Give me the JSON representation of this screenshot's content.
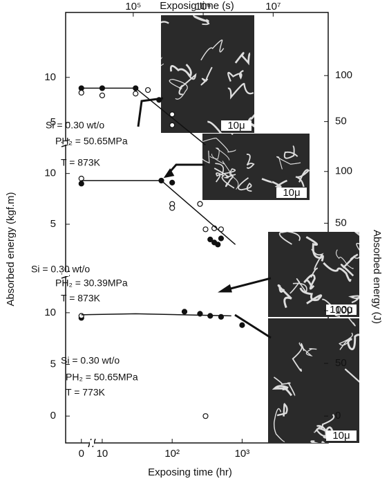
{
  "chart_data": {
    "type": "scatter",
    "xlabel": "Exposing time (hr)",
    "x2label": "Exposig time (s)",
    "ylabel": "Absorbed energy (kgf.m)",
    "y2label": "Absorbed energy (J)",
    "xscale": "log",
    "xlim": [
      3,
      17000
    ],
    "xticks": [
      0,
      10,
      {
        "value": 100,
        "label": "10²"
      },
      {
        "value": 1000,
        "label": "10³"
      }
    ],
    "x2lim": [
      10800,
      61200000
    ],
    "x2ticks": [
      {
        "value": 100000,
        "label": "10⁵"
      },
      {
        "value": 1000000,
        "label": "10⁶"
      },
      {
        "value": 10000000,
        "label": "10⁷"
      }
    ],
    "panels": [
      {
        "ylim": [
          3,
          17.2
        ],
        "yticks": [
          5,
          10
        ],
        "y2lim": [
          29.42,
          168.67
        ],
        "y2ticks": [
          50,
          100
        ],
        "annotations": [
          "Si = 0.30 wt/o",
          "PH₂ = 50.65MPa",
          "T = 873K"
        ],
        "series": [
          {
            "marker": "filled",
            "color": "#111111",
            "x": [
              0,
              10,
              30,
              65
            ],
            "values": [
              8.8,
              8.8,
              8.8,
              7.5
            ]
          },
          {
            "marker": "open",
            "color": "#111111",
            "x": [
              0,
              10,
              30,
              45,
              100,
              100
            ],
            "values": [
              8.3,
              8.0,
              8.2,
              8.6,
              5.9,
              4.7
            ]
          },
          {
            "marker": "line",
            "color": "#111111",
            "x": [
              0,
              30,
              300
            ],
            "values": [
              8.8,
              8.8,
              2.5
            ]
          }
        ]
      },
      {
        "ylim": [
          2,
          11
        ],
        "yticks": [
          5,
          10
        ],
        "y2lim": [
          19.61,
          107.87
        ],
        "y2ticks": [
          50,
          100
        ],
        "annotations": [
          "Si = 0.30 wt/o",
          "PH₂ = 30.39MPa",
          "T = 873K"
        ],
        "series": [
          {
            "marker": "filled",
            "color": "#111111",
            "x": [
              0,
              70,
              100,
              250,
              350,
              400,
              450,
              500
            ],
            "values": [
              9.0,
              9.3,
              9.1,
              7.0,
              3.5,
              3.2,
              3.0,
              3.6
            ]
          },
          {
            "marker": "open",
            "color": "#111111",
            "x": [
              0,
              100,
              100,
              250,
              300,
              400,
              500
            ],
            "values": [
              9.5,
              7.0,
              6.6,
              7.0,
              4.5,
              4.6,
              4.5
            ]
          },
          {
            "marker": "line",
            "color": "#111111",
            "x": [
              0,
              70,
              800
            ],
            "values": [
              9.3,
              9.3,
              3.0
            ]
          }
        ]
      },
      {
        "ylim": [
          -2.6,
          12
        ],
        "yticks": [
          0,
          5,
          10
        ],
        "y2lim": [
          -25.5,
          117.68
        ],
        "y2ticks": [
          0,
          50,
          100
        ],
        "annotations": [
          "Si = 0.30 wt/o",
          "PH₂ = 50.65MPa",
          "T = 773K"
        ],
        "series": [
          {
            "marker": "filled",
            "color": "#111111",
            "x": [
              0,
              150,
              250,
              350,
              500,
              1000
            ],
            "values": [
              9.5,
              10.1,
              9.9,
              9.7,
              9.6,
              8.8
            ]
          },
          {
            "marker": "open",
            "color": "#111111",
            "x": [
              0,
              300
            ],
            "values": [
              9.7,
              0
            ]
          },
          {
            "marker": "line",
            "color": "#111111",
            "x": [
              0,
              30,
              700
            ],
            "values": [
              9.8,
              9.9,
              9.7
            ]
          }
        ]
      }
    ]
  },
  "micrographs": [
    {
      "scale": "10μ"
    },
    {
      "scale": "10μ"
    },
    {
      "scale": "100μ"
    },
    {
      "scale": "10μ"
    }
  ]
}
